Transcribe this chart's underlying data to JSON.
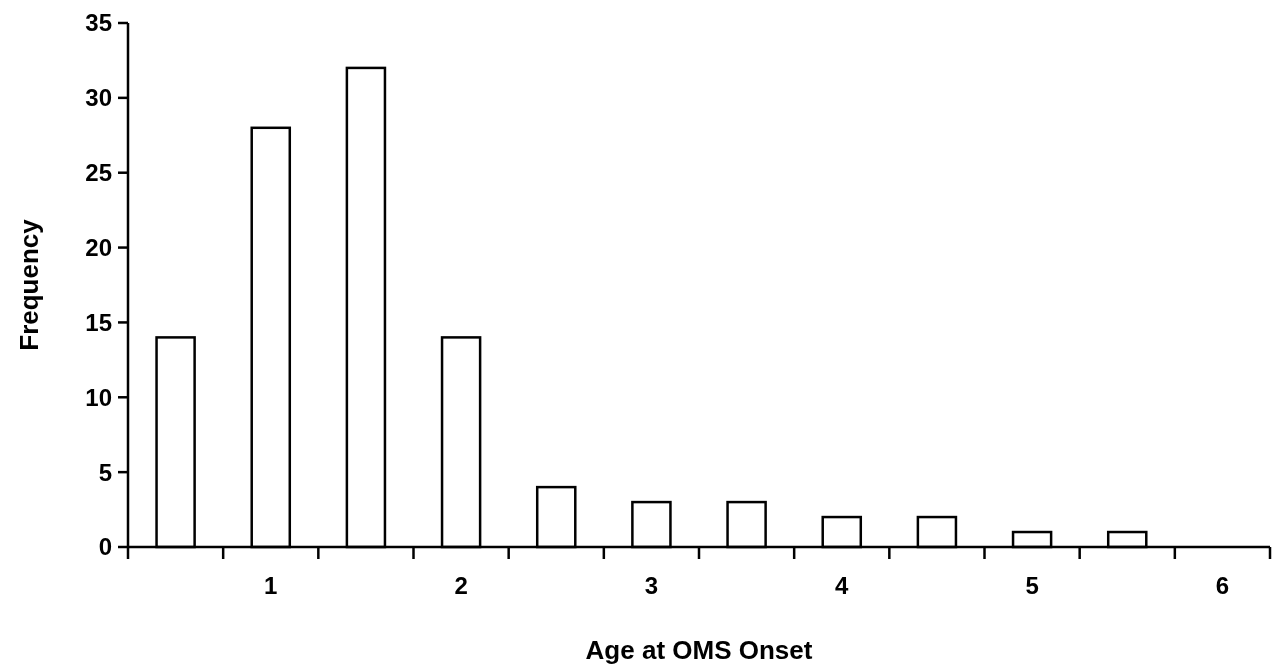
{
  "chart_data": {
    "type": "bar",
    "xlabel": "Age at OMS Onset",
    "ylabel": "Frequency",
    "categories": [
      null,
      "1",
      null,
      "2",
      null,
      "3",
      null,
      "4",
      null,
      "5",
      null,
      "6"
    ],
    "values": [
      14,
      28,
      32,
      14,
      4,
      3,
      3,
      2,
      2,
      1,
      1,
      0
    ],
    "color": "#ffffff",
    "ylim": [
      0,
      35
    ],
    "yticks": [
      0,
      5,
      10,
      15,
      20,
      25,
      30,
      35
    ],
    "grid": false
  }
}
